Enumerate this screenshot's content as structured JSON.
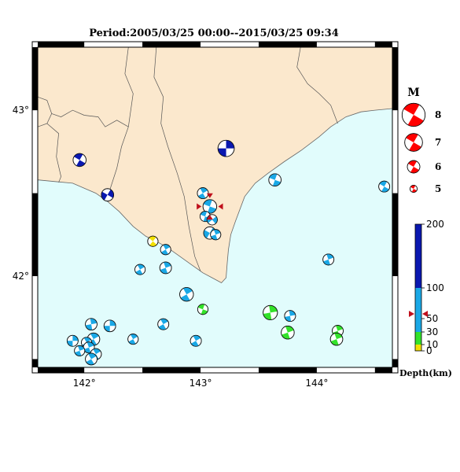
{
  "title": "Period:2005/03/25 00:00--2015/03/25 09:34",
  "map": {
    "lon_range": [
      141.6,
      144.65
    ],
    "lat_range": [
      41.45,
      43.38
    ],
    "lon_ticks": [
      {
        "value": 142,
        "label": "142°"
      },
      {
        "value": 143,
        "label": "143°"
      },
      {
        "value": 144,
        "label": "144°"
      }
    ],
    "lat_ticks": [
      {
        "value": 42,
        "label": "42°"
      },
      {
        "value": 43,
        "label": "43°"
      }
    ],
    "land_color": "#fbe8cd",
    "sea_color": "#e1fcfc",
    "land_outline": [
      [
        141.6,
        42.58
      ],
      [
        141.75,
        42.57
      ],
      [
        141.9,
        42.56
      ],
      [
        142.0,
        42.53
      ],
      [
        142.1,
        42.5
      ],
      [
        142.2,
        42.45
      ],
      [
        142.3,
        42.39
      ],
      [
        142.42,
        42.3
      ],
      [
        142.53,
        42.24
      ],
      [
        142.62,
        42.21
      ],
      [
        142.72,
        42.17
      ],
      [
        142.82,
        42.12
      ],
      [
        142.92,
        42.07
      ],
      [
        143.02,
        42.02
      ],
      [
        143.1,
        41.99
      ],
      [
        143.18,
        41.96
      ],
      [
        143.22,
        41.99
      ],
      [
        143.23,
        42.08
      ],
      [
        143.24,
        42.16
      ],
      [
        143.26,
        42.25
      ],
      [
        143.3,
        42.33
      ],
      [
        143.38,
        42.48
      ],
      [
        143.47,
        42.56
      ],
      [
        143.58,
        42.62
      ],
      [
        143.72,
        42.69
      ],
      [
        143.87,
        42.76
      ],
      [
        144.02,
        42.84
      ],
      [
        144.12,
        42.9
      ],
      [
        144.25,
        42.96
      ],
      [
        144.38,
        42.99
      ],
      [
        144.5,
        43.0
      ],
      [
        144.65,
        43.01
      ],
      [
        144.65,
        43.38
      ],
      [
        141.6,
        43.38
      ]
    ],
    "boundaries": [
      [
        [
          141.6,
          43.08
        ],
        [
          141.68,
          43.06
        ],
        [
          141.72,
          42.98
        ],
        [
          141.68,
          42.92
        ],
        [
          141.6,
          42.9
        ]
      ],
      [
        [
          141.72,
          42.98
        ],
        [
          141.8,
          42.96
        ],
        [
          141.9,
          43.0
        ],
        [
          142.0,
          42.97
        ],
        [
          142.12,
          42.96
        ],
        [
          142.18,
          42.9
        ],
        [
          142.28,
          42.94
        ],
        [
          142.38,
          42.9
        ]
      ],
      [
        [
          141.68,
          42.92
        ],
        [
          141.78,
          42.86
        ],
        [
          141.76,
          42.72
        ],
        [
          141.8,
          42.6
        ],
        [
          141.78,
          42.565
        ]
      ],
      [
        [
          142.38,
          43.38
        ],
        [
          142.35,
          43.22
        ],
        [
          142.42,
          43.1
        ],
        [
          142.38,
          42.9
        ],
        [
          142.32,
          42.78
        ],
        [
          142.28,
          42.65
        ],
        [
          142.22,
          42.52
        ],
        [
          142.18,
          42.46
        ]
      ],
      [
        [
          142.62,
          43.38
        ],
        [
          142.6,
          43.2
        ],
        [
          142.68,
          43.08
        ],
        [
          142.66,
          42.92
        ],
        [
          142.72,
          42.78
        ],
        [
          142.8,
          42.62
        ],
        [
          142.86,
          42.48
        ],
        [
          142.9,
          42.3
        ],
        [
          142.95,
          42.12
        ],
        [
          143.0,
          42.03
        ]
      ],
      [
        [
          143.86,
          43.38
        ],
        [
          143.83,
          43.26
        ],
        [
          143.92,
          43.16
        ],
        [
          144.02,
          43.1
        ],
        [
          144.12,
          43.03
        ],
        [
          144.18,
          42.92
        ]
      ]
    ]
  },
  "events": [
    {
      "lon": 141.96,
      "lat": 42.7,
      "depth": 120,
      "mag": 5.9,
      "rot": 30
    },
    {
      "lon": 142.2,
      "lat": 42.49,
      "depth": 120,
      "mag": 5.8,
      "rot": 120
    },
    {
      "lon": 143.22,
      "lat": 42.77,
      "depth": 150,
      "mag": 6.4,
      "rot": 90
    },
    {
      "lon": 143.02,
      "lat": 42.5,
      "depth": 80,
      "mag": 5.6,
      "rot": 60
    },
    {
      "lon": 143.08,
      "lat": 42.42,
      "depth": 50,
      "mag": 6.0,
      "rot": 20
    },
    {
      "lon": 143.04,
      "lat": 42.36,
      "depth": 80,
      "mag": 5.5,
      "rot": 200
    },
    {
      "lon": 143.1,
      "lat": 42.34,
      "depth": 80,
      "mag": 5.5,
      "rot": 140
    },
    {
      "lon": 143.08,
      "lat": 42.26,
      "depth": 80,
      "mag": 5.8,
      "rot": 300
    },
    {
      "lon": 143.13,
      "lat": 42.25,
      "depth": 60,
      "mag": 5.5,
      "rot": 250
    },
    {
      "lon": 143.64,
      "lat": 42.58,
      "depth": 80,
      "mag": 5.8,
      "rot": 20
    },
    {
      "lon": 144.58,
      "lat": 42.54,
      "depth": 80,
      "mag": 5.6,
      "rot": 30
    },
    {
      "lon": 142.59,
      "lat": 42.21,
      "depth": 10,
      "mag": 5.5,
      "rot": 40
    },
    {
      "lon": 142.7,
      "lat": 42.16,
      "depth": 80,
      "mag": 5.5,
      "rot": 60
    },
    {
      "lon": 142.48,
      "lat": 42.04,
      "depth": 80,
      "mag": 5.5,
      "rot": 60
    },
    {
      "lon": 142.7,
      "lat": 42.05,
      "depth": 60,
      "mag": 5.7,
      "rot": 70
    },
    {
      "lon": 144.1,
      "lat": 42.1,
      "depth": 60,
      "mag": 5.6,
      "rot": 70
    },
    {
      "lon": 142.88,
      "lat": 41.89,
      "depth": 60,
      "mag": 6.0,
      "rot": 60
    },
    {
      "lon": 143.02,
      "lat": 41.8,
      "depth": 30,
      "mag": 5.5,
      "rot": 20
    },
    {
      "lon": 143.6,
      "lat": 41.78,
      "depth": 30,
      "mag": 6.1,
      "rot": 80
    },
    {
      "lon": 143.77,
      "lat": 41.76,
      "depth": 60,
      "mag": 5.6,
      "rot": 80
    },
    {
      "lon": 142.22,
      "lat": 41.7,
      "depth": 80,
      "mag": 5.7,
      "rot": 90
    },
    {
      "lon": 142.68,
      "lat": 41.71,
      "depth": 60,
      "mag": 5.6,
      "rot": 60
    },
    {
      "lon": 142.06,
      "lat": 41.71,
      "depth": 60,
      "mag": 5.7,
      "rot": 80
    },
    {
      "lon": 143.75,
      "lat": 41.66,
      "depth": 30,
      "mag": 5.9,
      "rot": 70
    },
    {
      "lon": 144.18,
      "lat": 41.67,
      "depth": 30,
      "mag": 5.6,
      "rot": 70
    },
    {
      "lon": 141.9,
      "lat": 41.61,
      "depth": 60,
      "mag": 5.6,
      "rot": 90
    },
    {
      "lon": 142.42,
      "lat": 41.62,
      "depth": 60,
      "mag": 5.5,
      "rot": 60
    },
    {
      "lon": 142.08,
      "lat": 41.62,
      "depth": 80,
      "mag": 5.8,
      "rot": 60
    },
    {
      "lon": 142.02,
      "lat": 41.6,
      "depth": 60,
      "mag": 5.5,
      "rot": 60
    },
    {
      "lon": 142.96,
      "lat": 41.61,
      "depth": 60,
      "mag": 5.6,
      "rot": 60
    },
    {
      "lon": 142.04,
      "lat": 41.57,
      "depth": 60,
      "mag": 5.6,
      "rot": 70
    },
    {
      "lon": 141.96,
      "lat": 41.55,
      "depth": 60,
      "mag": 5.5,
      "rot": 70
    },
    {
      "lon": 142.1,
      "lat": 41.53,
      "depth": 60,
      "mag": 5.6,
      "rot": 60
    },
    {
      "lon": 142.06,
      "lat": 41.5,
      "depth": 60,
      "mag": 5.7,
      "rot": 60
    },
    {
      "lon": 144.17,
      "lat": 41.62,
      "depth": 30,
      "mag": 5.8,
      "rot": 70
    }
  ],
  "markers": [
    {
      "lon": 143.08,
      "lat": 42.42,
      "color": "#c0101c"
    }
  ],
  "magnitude_legend": {
    "title": "M",
    "entries": [
      {
        "mag": 8,
        "label": "8"
      },
      {
        "mag": 7,
        "label": "7"
      },
      {
        "mag": 6,
        "label": "6"
      },
      {
        "mag": 5,
        "label": "5"
      }
    ],
    "color": "#ff0000"
  },
  "depth_legend": {
    "label": "Depth(km)",
    "max": 200,
    "ticks": [
      {
        "value": 200,
        "label": "200"
      },
      {
        "value": 100,
        "label": "100"
      },
      {
        "value": 50,
        "label": "50"
      },
      {
        "value": 30,
        "label": "30"
      },
      {
        "value": 10,
        "label": "10"
      },
      {
        "value": 0,
        "label": "0"
      }
    ],
    "marker_depth": 50,
    "marker_color": "#c0101c",
    "bands": [
      {
        "from": 0,
        "to": 10,
        "color": "#f2e000"
      },
      {
        "from": 10,
        "to": 30,
        "color": "#33e22a"
      },
      {
        "from": 30,
        "to": 100,
        "color": "#1aa8e6"
      },
      {
        "from": 100,
        "to": 200,
        "color": "#0a18b0"
      }
    ]
  }
}
